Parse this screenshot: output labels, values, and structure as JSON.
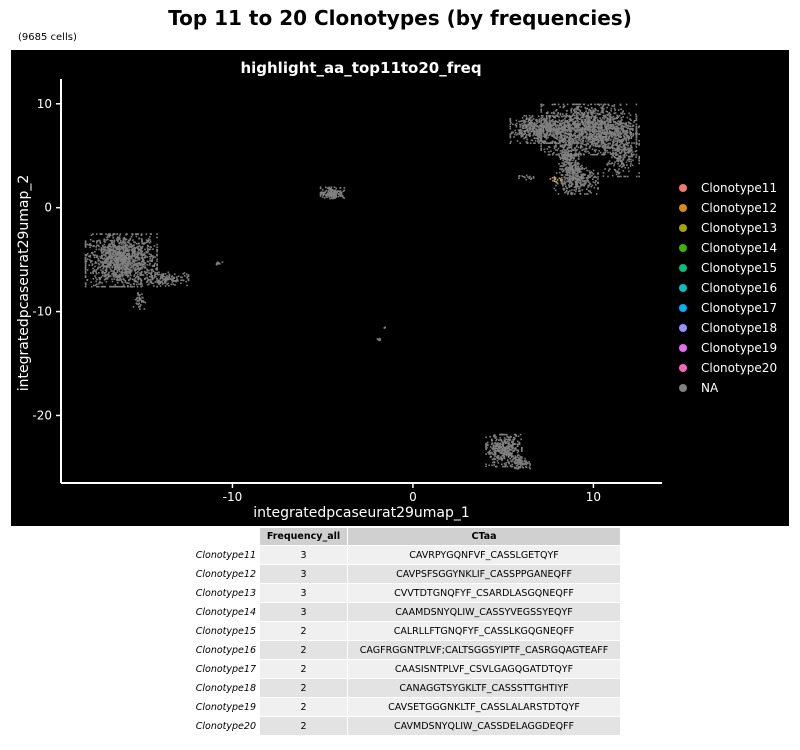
{
  "header": {
    "title": "Top 11 to 20 Clonotypes (by frequencies)",
    "subtitle": "(9685 cells)"
  },
  "chart_data": {
    "type": "scatter",
    "title": "highlight_aa_top11to20_freq",
    "xlabel": "integratedpcaseurat29umap_1",
    "ylabel": "integratedpcaseurat29umap_2",
    "xlim": [
      -19.5,
      13.8
    ],
    "ylim": [
      -26.5,
      12
    ],
    "xticks": [
      -10,
      0,
      10
    ],
    "yticks": [
      10,
      0,
      -10,
      -20
    ],
    "background": "#000000",
    "point_color_na": "#808080",
    "clusters": [
      {
        "cx": -16.2,
        "cy": -5.0,
        "rx": 1.8,
        "ry": 2.3,
        "n": 1300
      },
      {
        "cx": -13.8,
        "cy": -6.8,
        "rx": 1.2,
        "ry": 0.6,
        "n": 150
      },
      {
        "cx": -15.2,
        "cy": -8.8,
        "rx": 0.3,
        "ry": 0.8,
        "n": 40
      },
      {
        "cx": 9.7,
        "cy": 7.6,
        "rx": 2.4,
        "ry": 2.2,
        "n": 1500
      },
      {
        "cx": 11.5,
        "cy": 5.5,
        "rx": 0.9,
        "ry": 2.2,
        "n": 300
      },
      {
        "cx": 7.0,
        "cy": 7.6,
        "rx": 1.5,
        "ry": 1.2,
        "n": 500
      },
      {
        "cx": 8.6,
        "cy": 5.0,
        "rx": 0.5,
        "ry": 1.5,
        "n": 200
      },
      {
        "cx": 9.0,
        "cy": 2.6,
        "rx": 1.1,
        "ry": 1.1,
        "n": 300
      },
      {
        "cx": 8.9,
        "cy": 3.8,
        "rx": 0.6,
        "ry": 0.6,
        "n": 80
      },
      {
        "cx": -4.5,
        "cy": 1.5,
        "rx": 0.6,
        "ry": 0.5,
        "n": 150
      },
      {
        "cx": 5.0,
        "cy": -23.3,
        "rx": 0.9,
        "ry": 1.4,
        "n": 400
      },
      {
        "cx": 5.9,
        "cy": -24.5,
        "rx": 0.5,
        "ry": 0.5,
        "n": 80
      },
      {
        "cx": -10.8,
        "cy": -5.3,
        "rx": 0.25,
        "ry": 0.15,
        "n": 12
      },
      {
        "cx": 6.2,
        "cy": 3.0,
        "rx": 0.4,
        "ry": 0.2,
        "n": 15
      },
      {
        "cx": -1.9,
        "cy": -12.6,
        "rx": 0.1,
        "ry": 0.15,
        "n": 8
      },
      {
        "cx": -1.6,
        "cy": -11.4,
        "rx": 0.05,
        "ry": 0.1,
        "n": 3
      }
    ],
    "highlight_clusters": [
      {
        "cx": 7.9,
        "cy": 2.8,
        "rx": 0.3,
        "ry": 0.3,
        "n": 12,
        "color": "#C0A060"
      }
    ],
    "legend": [
      {
        "name": "Clonotype11",
        "color": "#F8766D"
      },
      {
        "name": "Clonotype12",
        "color": "#D89000"
      },
      {
        "name": "Clonotype13",
        "color": "#A3A500"
      },
      {
        "name": "Clonotype14",
        "color": "#39B600"
      },
      {
        "name": "Clonotype15",
        "color": "#00BF7D"
      },
      {
        "name": "Clonotype16",
        "color": "#00BFC4"
      },
      {
        "name": "Clonotype17",
        "color": "#00B0F6"
      },
      {
        "name": "Clonotype18",
        "color": "#9590FF"
      },
      {
        "name": "Clonotype19",
        "color": "#E76BF3"
      },
      {
        "name": "Clonotype20",
        "color": "#FF62BC"
      },
      {
        "name": "NA",
        "color": "#808080"
      }
    ]
  },
  "table": {
    "headers": [
      "Frequency_all",
      "CTaa"
    ],
    "rows": [
      {
        "name": "Clonotype11",
        "freq": "3",
        "ctaa": "CAVRPYGQNFVF_CASSLGETQYF"
      },
      {
        "name": "Clonotype12",
        "freq": "3",
        "ctaa": "CAVPSFSGGYNKLIF_CASSPPGANEQFF"
      },
      {
        "name": "Clonotype13",
        "freq": "3",
        "ctaa": "CVVTDTGNQFYF_CSARDLASGQNEQFF"
      },
      {
        "name": "Clonotype14",
        "freq": "3",
        "ctaa": "CAAMDSNYQLIW_CASSYVEGSSYEQYF"
      },
      {
        "name": "Clonotype15",
        "freq": "2",
        "ctaa": "CALRLLFTGNQFYF_CASSLKGQGNEQFF"
      },
      {
        "name": "Clonotype16",
        "freq": "2",
        "ctaa": "CAGFRGGNTPLVF;CALTSGGSYIPTF_CASRGQAGTEAFF"
      },
      {
        "name": "Clonotype17",
        "freq": "2",
        "ctaa": "CAASISNTPLVF_CSVLGAGQGATDTQYF"
      },
      {
        "name": "Clonotype18",
        "freq": "2",
        "ctaa": "CANAGGTSYGKLTF_CASSSTTGHTIYF"
      },
      {
        "name": "Clonotype19",
        "freq": "2",
        "ctaa": "CAVSETGGGNKLTF_CASSLALARSTDTQYF"
      },
      {
        "name": "Clonotype20",
        "freq": "2",
        "ctaa": "CAVMDSNYQLIW_CASSDELAGGDEQFF"
      }
    ]
  }
}
